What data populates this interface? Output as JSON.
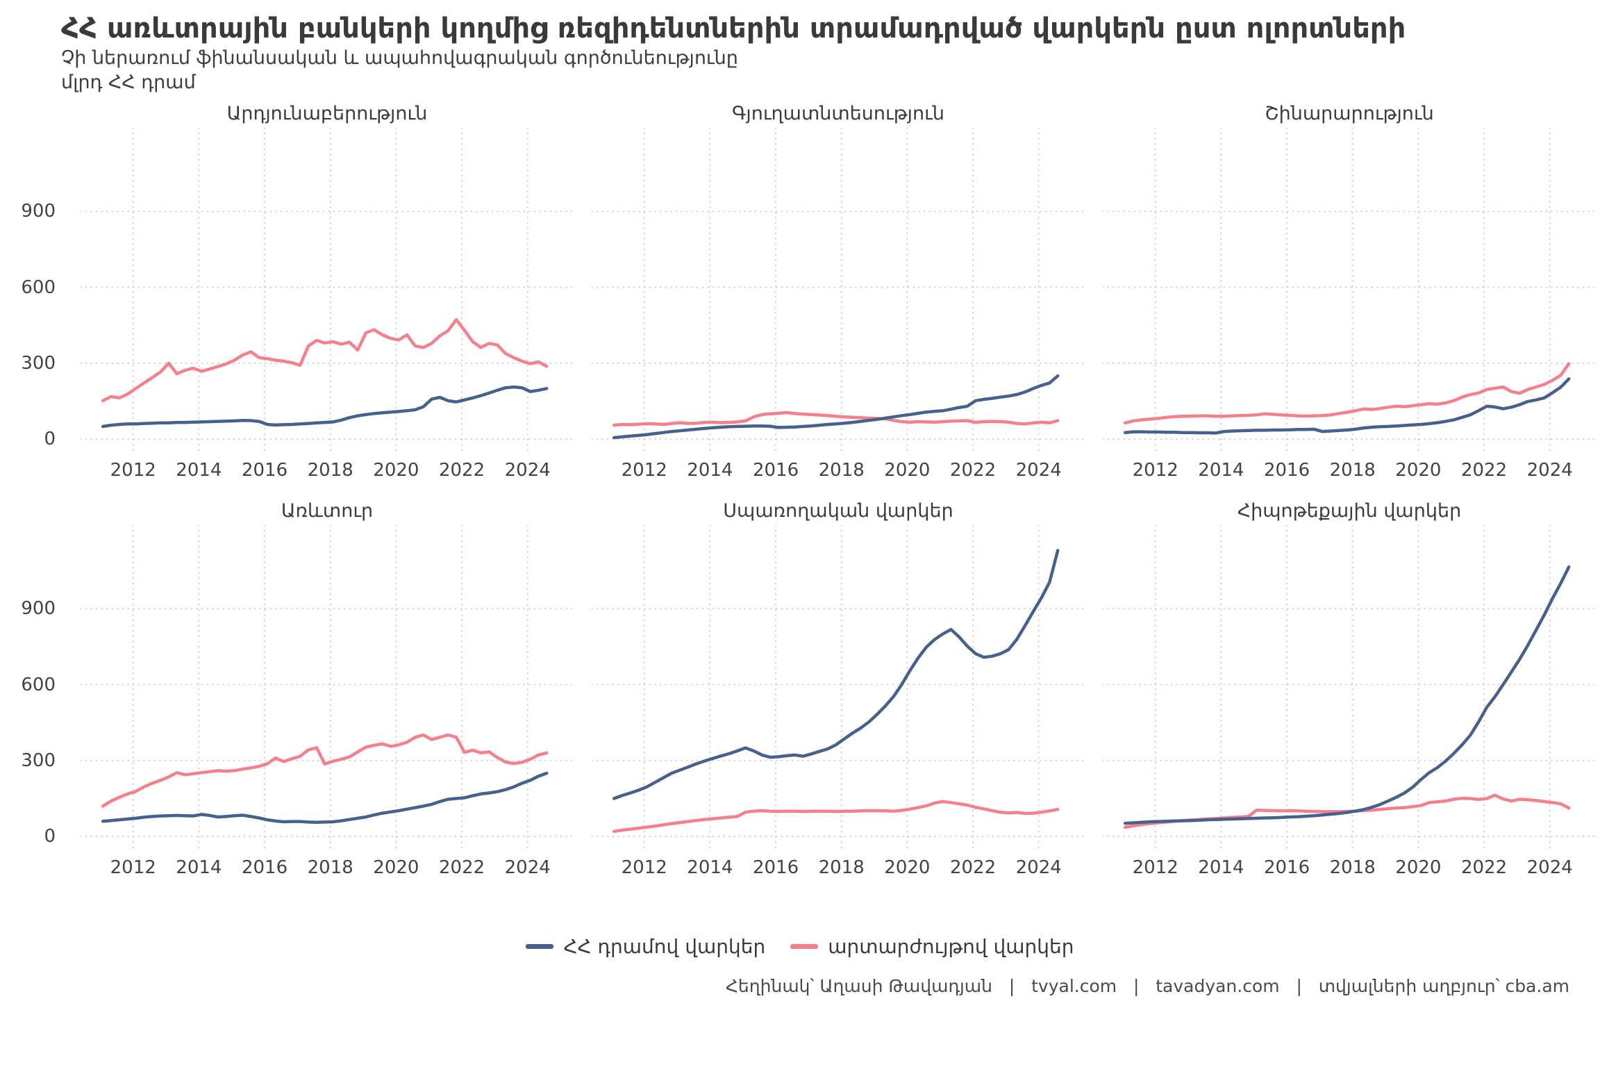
{
  "header": {
    "title": "ՀՀ առևտրային բանկերի կողմից ռեզիդենտներին տրամադրված վարկերն ըստ ոլորտների",
    "subtitle": "Չի ներառում ֆինանսական և ապահովագրական գործունեությունը",
    "units": "մլրդ ՀՀ դրամ"
  },
  "legend": {
    "amd_label": "ՀՀ դրամով վարկեր",
    "fx_label": "արտարժույթով վարկեր"
  },
  "footer": {
    "text": "Հեղինակ՝ Աղասի Թավադյան   |   tvyal.com   |   tavadyan.com   |   տվյալների աղբյուր՝ cba.am"
  },
  "colors": {
    "amd_line": "#46618e",
    "fx_line": "#f5808c",
    "grid": "#cfcfcf",
    "text": "#3a3a3a"
  },
  "chart_data": {
    "type": "line",
    "title": "ՀՀ առևտրային բանկերի կողմից ռեզիդենտներին տրամադրված վարկերն ըստ ոլորտների",
    "ylabel": "մլրդ ՀՀ դրամ",
    "grid": "dotted",
    "legend_position": "bottom",
    "x_domain": [
      2010.4,
      2025.4
    ],
    "y_domain": [
      -60,
      1230
    ],
    "x_label_ticks": [
      2012,
      2014,
      2016,
      2018,
      2020,
      2022,
      2024
    ],
    "y_ticks": [
      0,
      300,
      600,
      900
    ],
    "x": [
      2011.08,
      2011.33,
      2011.58,
      2011.83,
      2012.08,
      2012.33,
      2012.58,
      2012.83,
      2013.08,
      2013.33,
      2013.58,
      2013.83,
      2014.08,
      2014.33,
      2014.58,
      2014.83,
      2015.08,
      2015.33,
      2015.58,
      2015.83,
      2016.08,
      2016.33,
      2016.58,
      2016.83,
      2017.08,
      2017.33,
      2017.58,
      2017.83,
      2018.08,
      2018.33,
      2018.58,
      2018.83,
      2019.08,
      2019.33,
      2019.58,
      2019.83,
      2020.08,
      2020.33,
      2020.58,
      2020.83,
      2021.08,
      2021.33,
      2021.58,
      2021.83,
      2022.08,
      2022.33,
      2022.58,
      2022.83,
      2023.08,
      2023.33,
      2023.58,
      2023.83,
      2024.08,
      2024.33,
      2024.58
    ],
    "facets": [
      {
        "title": "Արդյունաբերություն",
        "series": [
          {
            "name": "ՀՀ դրամով վարկեր",
            "color_key": "amd_line",
            "values": [
              50,
              55,
              58,
              60,
              60,
              62,
              63,
              64,
              64,
              66,
              66,
              67,
              68,
              69,
              70,
              71,
              72,
              74,
              73,
              70,
              58,
              56,
              57,
              58,
              60,
              62,
              64,
              66,
              68,
              75,
              85,
              92,
              97,
              101,
              104,
              107,
              109,
              112,
              116,
              128,
              158,
              165,
              152,
              147,
              155,
              163,
              172,
              182,
              193,
              203,
              206,
              203,
              188,
              193,
              200
            ]
          },
          {
            "name": "արտարժույթով վարկեր",
            "color_key": "fx_line",
            "values": [
              152,
              168,
              163,
              178,
              200,
              222,
              243,
              265,
              300,
              258,
              272,
              280,
              268,
              277,
              287,
              297,
              312,
              332,
              345,
              322,
              318,
              312,
              308,
              302,
              292,
              368,
              390,
              380,
              385,
              375,
              383,
              352,
              420,
              432,
              412,
              398,
              392,
              412,
              368,
              362,
              378,
              408,
              428,
              472,
              430,
              385,
              362,
              378,
              372,
              338,
              322,
              308,
              298,
              305,
              288
            ]
          }
        ]
      },
      {
        "title": "Գյուղատնտեսություն",
        "series": [
          {
            "name": "ՀՀ դրամով վարկեր",
            "color_key": "amd_line",
            "values": [
              6,
              9,
              12,
              15,
              18,
              22,
              26,
              30,
              33,
              36,
              39,
              42,
              45,
              47,
              49,
              50,
              51,
              52,
              52,
              51,
              46,
              47,
              48,
              50,
              52,
              55,
              58,
              60,
              63,
              66,
              70,
              74,
              78,
              83,
              88,
              93,
              97,
              102,
              107,
              110,
              112,
              118,
              125,
              130,
              152,
              157,
              161,
              166,
              170,
              176,
              186,
              200,
              212,
              222,
              250
            ]
          },
          {
            "name": "արտարժույթով վարկեր",
            "color_key": "fx_line",
            "values": [
              55,
              58,
              57,
              59,
              61,
              60,
              58,
              62,
              65,
              62,
              63,
              66,
              67,
              65,
              66,
              68,
              72,
              88,
              97,
              100,
              102,
              105,
              101,
              99,
              97,
              95,
              93,
              90,
              88,
              86,
              85,
              83,
              82,
              80,
              74,
              69,
              67,
              69,
              68,
              67,
              69,
              71,
              72,
              73,
              66,
              69,
              70,
              69,
              67,
              62,
              60,
              64,
              67,
              64,
              73
            ]
          }
        ]
      },
      {
        "title": "Շինարարություն",
        "series": [
          {
            "name": "ՀՀ դրամով վարկեր",
            "color_key": "amd_line",
            "values": [
              26,
              29,
              29,
              28,
              28,
              27,
              27,
              26,
              26,
              25,
              25,
              24,
              30,
              32,
              33,
              34,
              35,
              35,
              36,
              36,
              37,
              38,
              38,
              39,
              30,
              32,
              34,
              36,
              39,
              44,
              47,
              49,
              50,
              52,
              54,
              56,
              58,
              61,
              65,
              70,
              76,
              86,
              96,
              112,
              130,
              127,
              120,
              126,
              136,
              149,
              155,
              163,
              183,
              205,
              238
            ]
          },
          {
            "name": "արտարժույթով վարկեր",
            "color_key": "fx_line",
            "values": [
              64,
              72,
              76,
              79,
              82,
              86,
              89,
              90,
              91,
              92,
              92,
              90,
              90,
              92,
              93,
              94,
              96,
              100,
              98,
              96,
              94,
              92,
              91,
              92,
              93,
              96,
              101,
              106,
              112,
              119,
              117,
              121,
              126,
              130,
              128,
              132,
              136,
              140,
              138,
              143,
              152,
              166,
              176,
              182,
              196,
              201,
              206,
              188,
              181,
              196,
              206,
              216,
              232,
              252,
              298
            ]
          }
        ]
      },
      {
        "title": "Առևտուր",
        "series": [
          {
            "name": "ՀՀ դրամով վարկեր",
            "color_key": "amd_line",
            "values": [
              60,
              63,
              66,
              69,
              72,
              76,
              79,
              81,
              82,
              83,
              82,
              81,
              87,
              83,
              77,
              79,
              82,
              84,
              79,
              73,
              66,
              61,
              58,
              59,
              59,
              57,
              56,
              57,
              58,
              62,
              67,
              72,
              77,
              85,
              92,
              97,
              102,
              108,
              114,
              120,
              127,
              138,
              147,
              150,
              153,
              161,
              168,
              172,
              177,
              185,
              196,
              210,
              222,
              238,
              250
            ]
          },
          {
            "name": "արտարժույթով վարկեր",
            "color_key": "fx_line",
            "values": [
              120,
              140,
              155,
              168,
              178,
              196,
              210,
              222,
              235,
              252,
              244,
              248,
              252,
              256,
              260,
              258,
              260,
              266,
              271,
              277,
              287,
              310,
              296,
              307,
              317,
              342,
              351,
              286,
              297,
              305,
              314,
              334,
              353,
              360,
              366,
              356,
              362,
              372,
              392,
              401,
              383,
              392,
              401,
              392,
              332,
              341,
              330,
              334,
              312,
              294,
              288,
              293,
              305,
              322,
              330
            ]
          }
        ]
      },
      {
        "title": "Սպառողական վարկեր",
        "series": [
          {
            "name": "ՀՀ դրամով վարկեր",
            "color_key": "amd_line",
            "values": [
              150,
              162,
              172,
              183,
              196,
              214,
              232,
              250,
              262,
              274,
              287,
              298,
              308,
              318,
              327,
              338,
              350,
              338,
              322,
              313,
              315,
              319,
              322,
              317,
              326,
              336,
              346,
              362,
              385,
              408,
              428,
              452,
              482,
              515,
              552,
              600,
              655,
              705,
              748,
              778,
              800,
              818,
              788,
              752,
              722,
              708,
              712,
              722,
              738,
              778,
              832,
              888,
              942,
              1005,
              1130
            ]
          },
          {
            "name": "արտարժույթով վարկեր",
            "color_key": "fx_line",
            "values": [
              20,
              25,
              29,
              33,
              37,
              41,
              46,
              51,
              55,
              59,
              63,
              67,
              70,
              73,
              76,
              79,
              96,
              100,
              102,
              100,
              99,
              100,
              100,
              99,
              100,
              100,
              100,
              99,
              100,
              100,
              101,
              102,
              102,
              101,
              100,
              103,
              108,
              114,
              121,
              132,
              138,
              134,
              129,
              124,
              115,
              109,
              102,
              96,
              93,
              95,
              91,
              92,
              96,
              101,
              107
            ]
          }
        ]
      },
      {
        "title": "Հիպոթեքային վարկեր",
        "series": [
          {
            "name": "ՀՀ դրամով վարկեր",
            "color_key": "amd_line",
            "values": [
              52,
              54,
              56,
              58,
              59,
              60,
              61,
              62,
              63,
              64,
              66,
              67,
              68,
              69,
              70,
              71,
              72,
              73,
              74,
              75,
              77,
              78,
              80,
              82,
              85,
              88,
              91,
              95,
              100,
              106,
              115,
              126,
              140,
              155,
              172,
              195,
              225,
              252,
              272,
              298,
              328,
              362,
              400,
              452,
              510,
              552,
              600,
              650,
              700,
              755,
              815,
              875,
              940,
              1000,
              1065
            ]
          },
          {
            "name": "արտարժույթով վարկեր",
            "color_key": "fx_line",
            "values": [
              36,
              42,
              47,
              51,
              54,
              57,
              60,
              63,
              65,
              67,
              69,
              71,
              73,
              75,
              77,
              79,
              104,
              103,
              102,
              101,
              102,
              101,
              100,
              99,
              98,
              98,
              98,
              99,
              100,
              102,
              104,
              107,
              110,
              112,
              114,
              118,
              122,
              134,
              137,
              140,
              147,
              151,
              150,
              146,
              150,
              163,
              148,
              140,
              147,
              145,
              142,
              138,
              134,
              129,
              112
            ]
          }
        ]
      }
    ]
  }
}
